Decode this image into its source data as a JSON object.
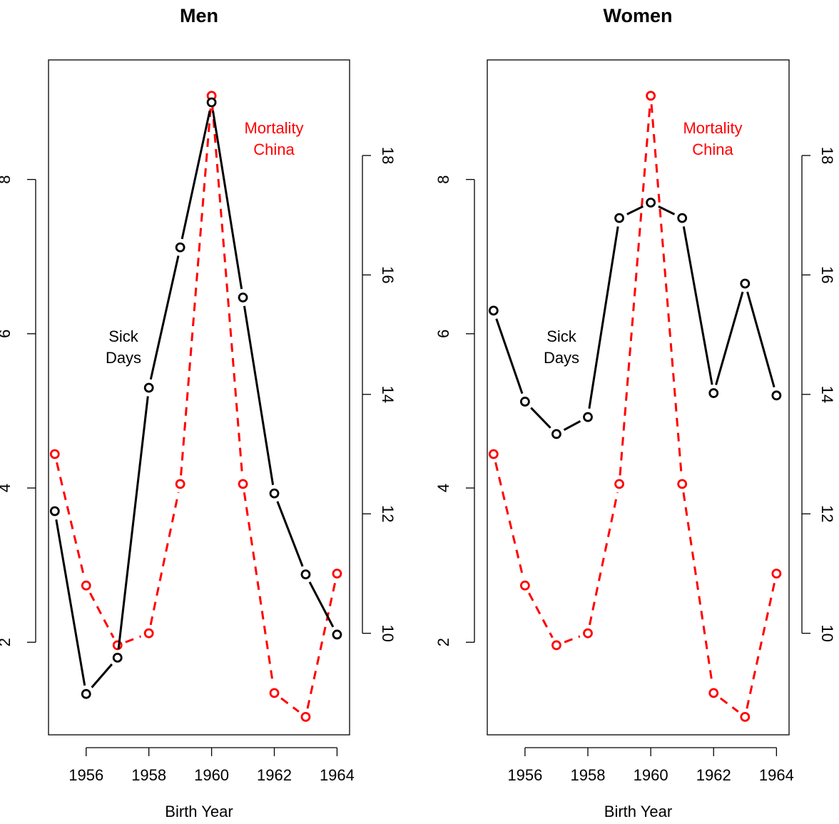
{
  "colors": {
    "sick": "#000000",
    "mortality": "#ff0000"
  },
  "chart_data": [
    {
      "type": "line",
      "title": "Men",
      "xlabel": "Birth Year",
      "x": [
        1955,
        1956,
        1957,
        1958,
        1959,
        1960,
        1961,
        1962,
        1963,
        1964
      ],
      "x_ticks": [
        "1956",
        "1958",
        "1960",
        "1962",
        "1964"
      ],
      "x_tick_values": [
        1956,
        1958,
        1960,
        1962,
        1964
      ],
      "xlim": [
        1954.8,
        1964.4
      ],
      "left_axis": {
        "ticks": [
          "2",
          "4",
          "6",
          "8"
        ],
        "tick_values": [
          2,
          4,
          6,
          8
        ],
        "ylim": [
          0.8,
          9.55
        ]
      },
      "right_axis": {
        "ticks": [
          "10",
          "12",
          "14",
          "16",
          "18"
        ],
        "tick_values": [
          10,
          12,
          14,
          16,
          18
        ],
        "ylim": [
          8.3,
          19.6
        ]
      },
      "series": [
        {
          "label_line1": "Sick",
          "label_line2": "Days",
          "axis": "left",
          "style": "solid",
          "color": "#000000",
          "values": [
            3.7,
            1.33,
            1.8,
            5.3,
            7.12,
            9.0,
            6.47,
            3.93,
            2.88,
            2.1
          ]
        },
        {
          "label_line1": "Mortality",
          "label_line2": "China",
          "axis": "right",
          "style": "dashed",
          "color": "#ff0000",
          "values": [
            13.0,
            10.8,
            9.8,
            10.0,
            12.5,
            19.0,
            12.5,
            9.0,
            8.6,
            11.0
          ]
        }
      ]
    },
    {
      "type": "line",
      "title": "Women",
      "xlabel": "Birth Year",
      "x": [
        1955,
        1956,
        1957,
        1958,
        1959,
        1960,
        1961,
        1962,
        1963,
        1964
      ],
      "x_ticks": [
        "1956",
        "1958",
        "1960",
        "1962",
        "1964"
      ],
      "x_tick_values": [
        1956,
        1958,
        1960,
        1962,
        1964
      ],
      "xlim": [
        1954.8,
        1964.4
      ],
      "left_axis": {
        "ticks": [
          "2",
          "4",
          "6",
          "8"
        ],
        "tick_values": [
          2,
          4,
          6,
          8
        ],
        "ylim": [
          0.8,
          9.55
        ]
      },
      "right_axis": {
        "ticks": [
          "10",
          "12",
          "14",
          "16",
          "18"
        ],
        "tick_values": [
          10,
          12,
          14,
          16,
          18
        ],
        "ylim": [
          8.3,
          19.6
        ]
      },
      "series": [
        {
          "label_line1": "Sick",
          "label_line2": "Days",
          "axis": "left",
          "style": "solid",
          "color": "#000000",
          "values": [
            6.3,
            5.12,
            4.7,
            4.92,
            7.5,
            7.7,
            7.5,
            5.23,
            6.65,
            5.2
          ]
        },
        {
          "label_line1": "Mortality",
          "label_line2": "China",
          "axis": "right",
          "style": "dashed",
          "color": "#ff0000",
          "values": [
            13.0,
            10.8,
            9.8,
            10.0,
            12.5,
            19.0,
            12.5,
            9.0,
            8.6,
            11.0
          ]
        }
      ]
    }
  ]
}
